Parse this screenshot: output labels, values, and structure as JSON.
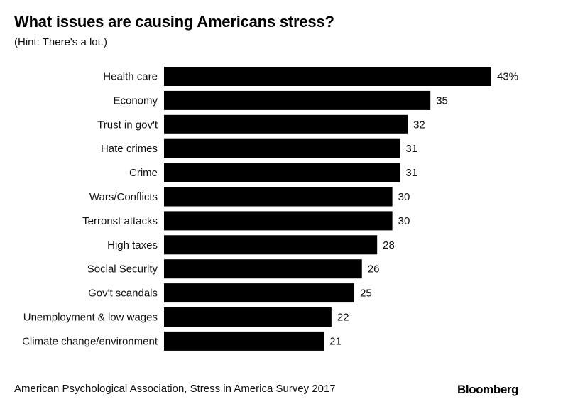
{
  "chart_data": {
    "type": "bar",
    "orientation": "horizontal",
    "title": "What issues are causing Americans stress?",
    "subtitle": "(Hint: There's a lot.)",
    "xlabel": "",
    "ylabel": "",
    "unit": "%",
    "xlim": [
      0,
      43
    ],
    "grid": false,
    "categories": [
      "Health care",
      "Economy",
      "Trust in gov't",
      "Hate crimes",
      "Crime",
      "Wars/Conflicts",
      "Terrorist attacks",
      "High taxes",
      "Social Security",
      "Gov't scandals",
      "Unemployment & low wages",
      "Climate change/environment"
    ],
    "values": [
      43,
      35,
      32,
      31,
      31,
      30,
      30,
      28,
      26,
      25,
      22,
      21
    ],
    "value_labels": [
      "43%",
      "35",
      "32",
      "31",
      "31",
      "30",
      "30",
      "28",
      "26",
      "25",
      "22",
      "21"
    ],
    "bar_color": "#000000",
    "source": "American Psychological Association, Stress in America Survey 2017",
    "brand": "Bloomberg"
  }
}
